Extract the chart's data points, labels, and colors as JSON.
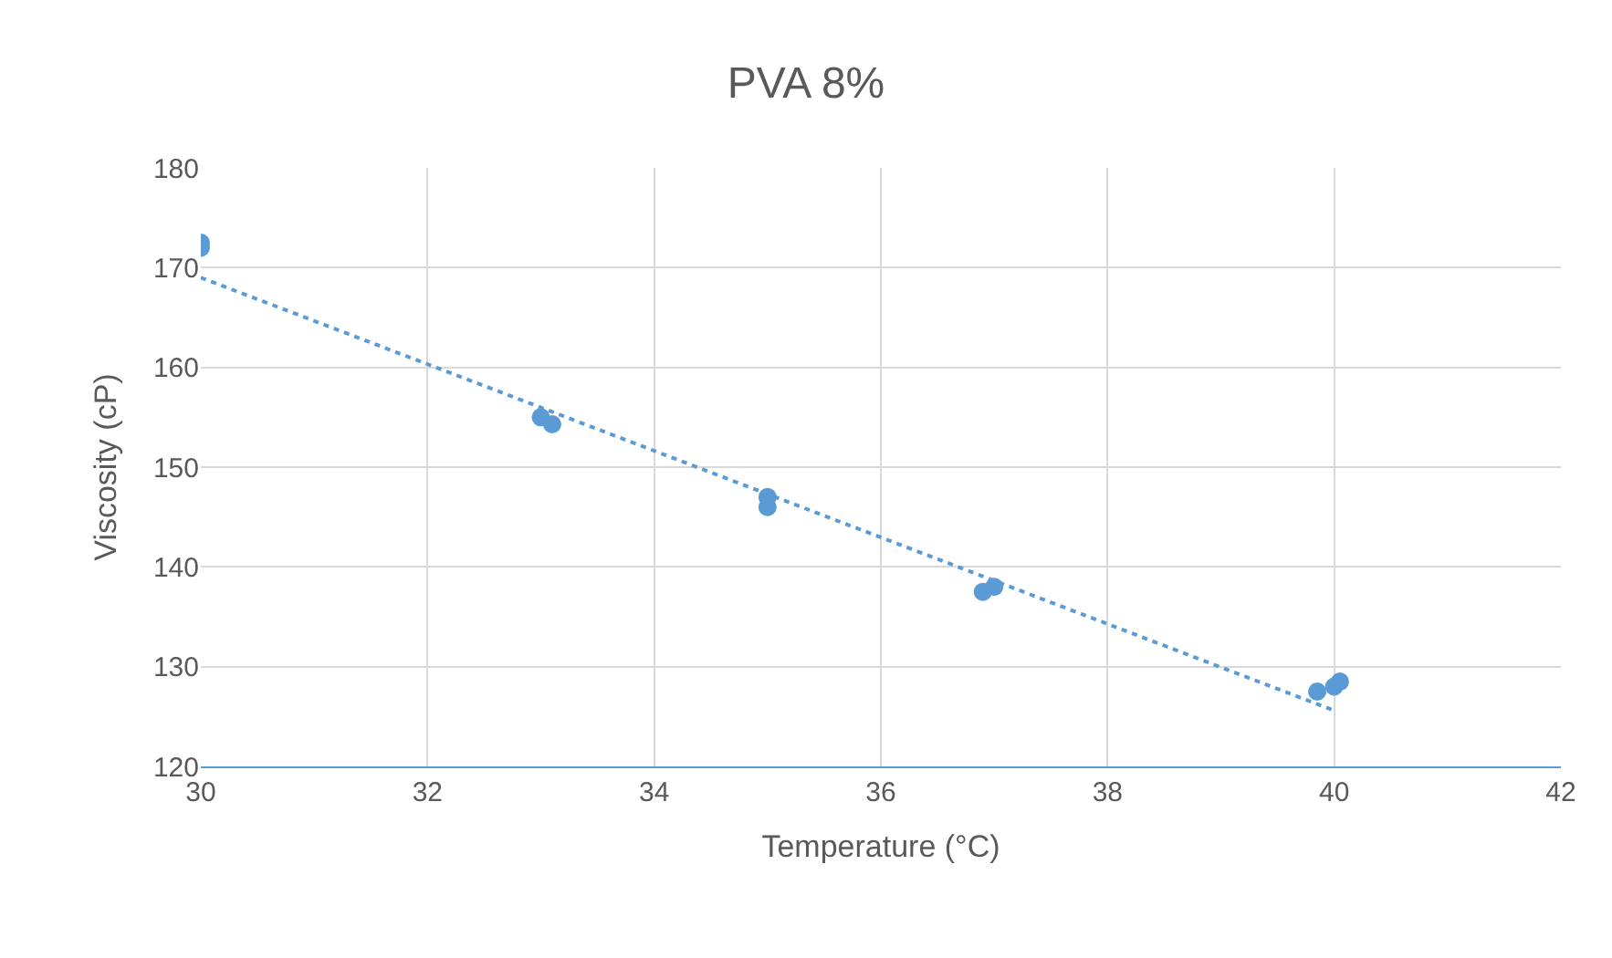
{
  "chart_data": {
    "type": "scatter",
    "title": "PVA 8%",
    "xlabel": "Temperature (°C)",
    "ylabel": "Viscosity (cP)",
    "xlim": [
      30,
      42
    ],
    "xticks": [
      30,
      32,
      34,
      36,
      38,
      40,
      42
    ],
    "ylim": [
      120,
      180
    ],
    "yticks": [
      120,
      130,
      140,
      150,
      160,
      170,
      180
    ],
    "grid": true,
    "marker": "circle",
    "series": [
      {
        "color": "#5b9bd5",
        "x": [
          30,
          30,
          33,
          33.1,
          35,
          35,
          36.9,
          37,
          39.85,
          40,
          40.05
        ],
        "values": [
          172.5,
          172,
          155,
          154.3,
          147,
          146,
          137.5,
          138,
          127.5,
          128,
          128.5
        ]
      },
      {
        "type": "line",
        "color": "#5b9bd5",
        "line_style": "dotted",
        "marker": "none",
        "x": [
          30,
          40
        ],
        "values": [
          169,
          125.6
        ]
      }
    ]
  }
}
